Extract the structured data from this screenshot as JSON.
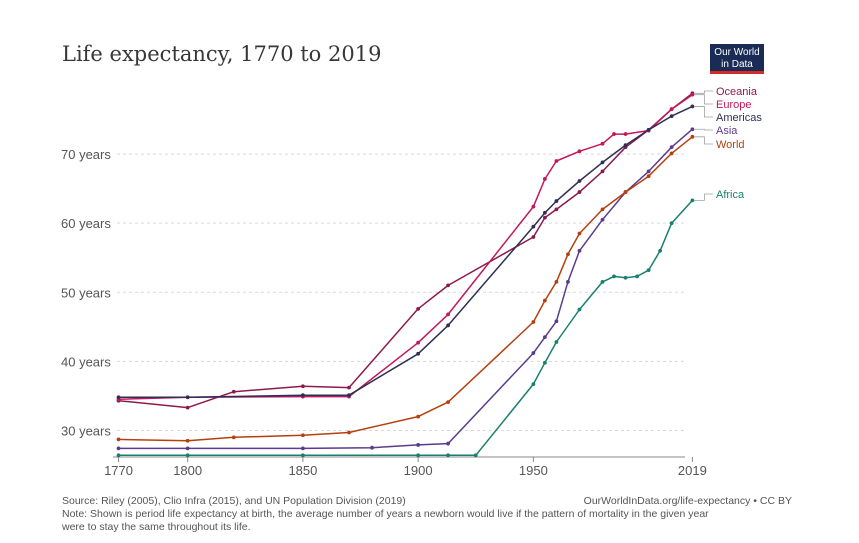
{
  "chart_data": {
    "type": "line",
    "title": "Life expectancy, 1770 to 2019",
    "xlabel": "",
    "ylabel": "",
    "xlim": [
      1765,
      2021
    ],
    "ylim": [
      26.3,
      80
    ],
    "x_ticks": [
      {
        "value": 1770,
        "label": "1770"
      },
      {
        "value": 1800,
        "label": "1800"
      },
      {
        "value": 1850,
        "label": "1850"
      },
      {
        "value": 1900,
        "label": "1900"
      },
      {
        "value": 1950,
        "label": "1950"
      },
      {
        "value": 2019,
        "label": "2019"
      }
    ],
    "y_ticks": [
      {
        "value": 30,
        "label": "30 years"
      },
      {
        "value": 40,
        "label": "40 years"
      },
      {
        "value": 50,
        "label": "50 years"
      },
      {
        "value": 60,
        "label": "60 years"
      },
      {
        "value": 70,
        "label": "70 years"
      }
    ],
    "series": [
      {
        "name": "Oceania",
        "key": "oceania",
        "color": "#8c1a4b",
        "points": [
          [
            1770,
            34.3
          ],
          [
            1800,
            33.3
          ],
          [
            1820,
            35.6
          ],
          [
            1850,
            36.4
          ],
          [
            1870,
            36.2
          ],
          [
            1900,
            47.6
          ],
          [
            1913,
            51
          ],
          [
            1950,
            58
          ],
          [
            1955,
            60.8
          ],
          [
            1960,
            62
          ],
          [
            1970,
            64.5
          ],
          [
            1980,
            67.5
          ],
          [
            1990,
            71
          ],
          [
            2000,
            73.5
          ],
          [
            2010,
            76.5
          ],
          [
            2019,
            78.8
          ]
        ]
      },
      {
        "name": "Europe",
        "key": "europe",
        "color": "#c2185b",
        "points": [
          [
            1770,
            34.5
          ],
          [
            1800,
            34.8
          ],
          [
            1850,
            34.9
          ],
          [
            1870,
            34.9
          ],
          [
            1900,
            42.7
          ],
          [
            1913,
            46.8
          ],
          [
            1950,
            62.4
          ],
          [
            1955,
            66.4
          ],
          [
            1960,
            69
          ],
          [
            1970,
            70.4
          ],
          [
            1980,
            71.5
          ],
          [
            1985,
            72.9
          ],
          [
            1990,
            72.9
          ],
          [
            2000,
            73.4
          ],
          [
            2010,
            76.5
          ],
          [
            2019,
            78.6
          ]
        ]
      },
      {
        "name": "Americas",
        "key": "americas",
        "color": "#2e2e56",
        "points": [
          [
            1770,
            34.8
          ],
          [
            1800,
            34.8
          ],
          [
            1850,
            35.1
          ],
          [
            1870,
            35.1
          ],
          [
            1900,
            41.1
          ],
          [
            1913,
            45.2
          ],
          [
            1950,
            59.5
          ],
          [
            1955,
            61.5
          ],
          [
            1960,
            63.2
          ],
          [
            1970,
            66.1
          ],
          [
            1980,
            68.8
          ],
          [
            1990,
            71.3
          ],
          [
            2000,
            73.5
          ],
          [
            2010,
            75.5
          ],
          [
            2019,
            76.9
          ]
        ]
      },
      {
        "name": "Asia",
        "key": "asia",
        "color": "#5b3b8c",
        "points": [
          [
            1770,
            27.4
          ],
          [
            1800,
            27.4
          ],
          [
            1850,
            27.4
          ],
          [
            1880,
            27.5
          ],
          [
            1900,
            27.9
          ],
          [
            1913,
            28.1
          ],
          [
            1950,
            41.2
          ],
          [
            1955,
            43.5
          ],
          [
            1960,
            45.8
          ],
          [
            1965,
            51.5
          ],
          [
            1970,
            56
          ],
          [
            1980,
            60.5
          ],
          [
            1990,
            64.5
          ],
          [
            2000,
            67.5
          ],
          [
            2010,
            71
          ],
          [
            2019,
            73.6
          ]
        ]
      },
      {
        "name": "World",
        "key": "world",
        "color": "#b5400f",
        "points": [
          [
            1770,
            28.7
          ],
          [
            1800,
            28.5
          ],
          [
            1820,
            29
          ],
          [
            1850,
            29.3
          ],
          [
            1870,
            29.7
          ],
          [
            1900,
            32
          ],
          [
            1913,
            34.1
          ],
          [
            1950,
            45.7
          ],
          [
            1955,
            48.8
          ],
          [
            1960,
            51.5
          ],
          [
            1965,
            55.5
          ],
          [
            1970,
            58.5
          ],
          [
            1980,
            62
          ],
          [
            1990,
            64.5
          ],
          [
            2000,
            66.8
          ],
          [
            2010,
            70.1
          ],
          [
            2019,
            72.5
          ]
        ]
      },
      {
        "name": "Africa",
        "key": "africa",
        "color": "#18806f",
        "points": [
          [
            1770,
            26.4
          ],
          [
            1800,
            26.4
          ],
          [
            1850,
            26.4
          ],
          [
            1900,
            26.4
          ],
          [
            1913,
            26.4
          ],
          [
            1925,
            26.4
          ],
          [
            1950,
            36.7
          ],
          [
            1955,
            39.8
          ],
          [
            1960,
            42.8
          ],
          [
            1970,
            47.5
          ],
          [
            1980,
            51.5
          ],
          [
            1985,
            52.3
          ],
          [
            1990,
            52.1
          ],
          [
            1995,
            52.3
          ],
          [
            2000,
            53.2
          ],
          [
            2005,
            56
          ],
          [
            2010,
            60
          ],
          [
            2019,
            63.3
          ]
        ]
      }
    ]
  },
  "logo": {
    "line1": "Our World",
    "line2": "in Data",
    "bg": "#1a2c55",
    "accent": "#d42b2b"
  },
  "footer": {
    "source": "Source: Riley (2005), Clio Infra (2015), and UN Population Division (2019)",
    "credit": "OurWorldInData.org/life-expectancy • CC BY",
    "note_line1": "Note: Shown is period life expectancy at birth, the average number of years a newborn would live if the pattern of mortality in the given year",
    "note_line2": "were to stay the same throughout its life."
  }
}
